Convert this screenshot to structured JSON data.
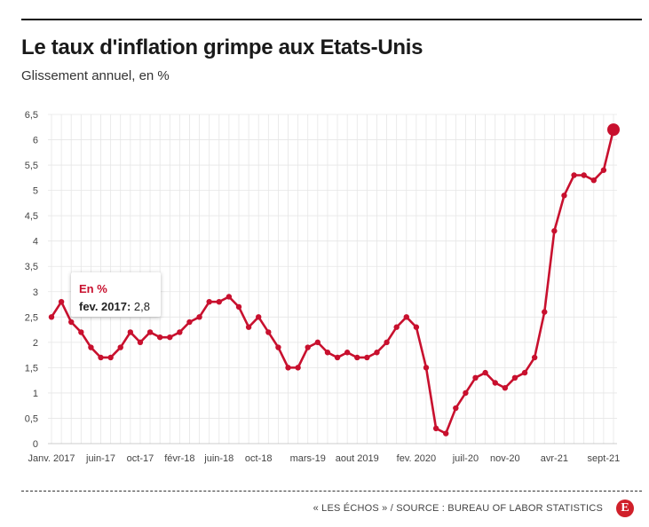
{
  "title": "Le taux d'inflation grimpe aux Etats-Unis",
  "subtitle": "Glissement annuel, en %",
  "source": "« LES ÉCHOS » / SOURCE : BUREAU OF LABOR STATISTICS",
  "logo_letter": "E",
  "tooltip": {
    "series": "En %",
    "date": "fev. 2017:",
    "value": "2,8"
  },
  "colors": {
    "line": "#c8102e",
    "grid": "#e6e6e6"
  },
  "chart_data": {
    "type": "line",
    "title": "Le taux d'inflation grimpe aux Etats-Unis",
    "subtitle": "Glissement annuel, en %",
    "ylim": [
      0,
      6.5
    ],
    "y_ticks": [
      0,
      0.5,
      1,
      1.5,
      2,
      2.5,
      3,
      3.5,
      4,
      4.5,
      5,
      5.5,
      6,
      6.5
    ],
    "y_tick_labels": [
      "0",
      "0,5",
      "1",
      "1,5",
      "2",
      "2,5",
      "3",
      "3,5",
      "4",
      "4,5",
      "5",
      "5,5",
      "6",
      "6,5"
    ],
    "x_tick_labels": [
      {
        "label": "Janv. 2017",
        "index": 0
      },
      {
        "label": "juin-17",
        "index": 5
      },
      {
        "label": "oct-17",
        "index": 9
      },
      {
        "label": "févr-18",
        "index": 13
      },
      {
        "label": "juin-18",
        "index": 17
      },
      {
        "label": "oct-18",
        "index": 21
      },
      {
        "label": "mars-19",
        "index": 26
      },
      {
        "label": "aout 2019",
        "index": 31
      },
      {
        "label": "fev. 2020",
        "index": 37
      },
      {
        "label": "juil-20",
        "index": 42
      },
      {
        "label": "nov-20",
        "index": 46
      },
      {
        "label": "avr-21",
        "index": 51
      },
      {
        "label": "sept-21",
        "index": 56
      }
    ],
    "grid": true,
    "highlight_index": 57,
    "series": [
      {
        "name": "En %",
        "values": [
          2.5,
          2.8,
          2.4,
          2.2,
          1.9,
          1.7,
          1.7,
          1.9,
          2.2,
          2.0,
          2.2,
          2.1,
          2.1,
          2.2,
          2.4,
          2.5,
          2.8,
          2.8,
          2.9,
          2.7,
          2.3,
          2.5,
          2.2,
          1.9,
          1.5,
          1.5,
          1.9,
          2.0,
          1.8,
          1.7,
          1.8,
          1.7,
          1.7,
          1.8,
          2.0,
          2.3,
          2.5,
          2.3,
          1.5,
          0.3,
          0.2,
          0.7,
          1.0,
          1.3,
          1.4,
          1.2,
          1.1,
          1.3,
          1.4,
          1.7,
          2.6,
          4.2,
          4.9,
          5.3,
          5.3,
          5.2,
          5.4,
          6.2
        ]
      }
    ]
  }
}
